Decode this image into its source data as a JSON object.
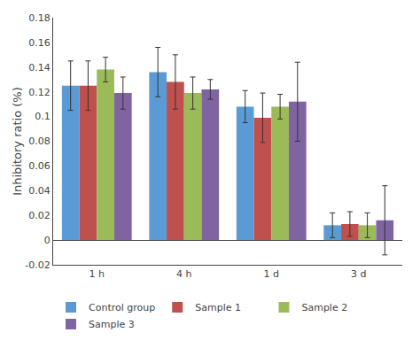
{
  "chart_data": {
    "type": "bar",
    "categories": [
      "1 h",
      "4 h",
      "1 d",
      "3 d"
    ],
    "series": [
      {
        "name": "Control group",
        "color": "#5B9BD5",
        "values": [
          0.125,
          0.136,
          0.108,
          0.012
        ],
        "errors": [
          0.02,
          0.02,
          0.013,
          0.01
        ]
      },
      {
        "name": "Sample 1",
        "color": "#C0504D",
        "values": [
          0.125,
          0.128,
          0.099,
          0.013
        ],
        "errors": [
          0.02,
          0.022,
          0.02,
          0.01
        ]
      },
      {
        "name": "Sample 2",
        "color": "#9BBB59",
        "values": [
          0.138,
          0.119,
          0.108,
          0.012
        ],
        "errors": [
          0.01,
          0.013,
          0.01,
          0.01
        ]
      },
      {
        "name": "Sample 3",
        "color": "#8064A2",
        "values": [
          0.119,
          0.122,
          0.112,
          0.016
        ],
        "errors": [
          0.013,
          0.008,
          0.032,
          0.028
        ]
      }
    ],
    "ylabel": "Inhibitory ratio (%)",
    "ylim": [
      -0.02,
      0.18
    ],
    "yticks": [
      -0.02,
      0,
      0.02,
      0.04,
      0.06,
      0.08,
      0.1,
      0.12,
      0.14,
      0.16,
      0.18
    ],
    "grid": false,
    "legend": "bottom"
  }
}
